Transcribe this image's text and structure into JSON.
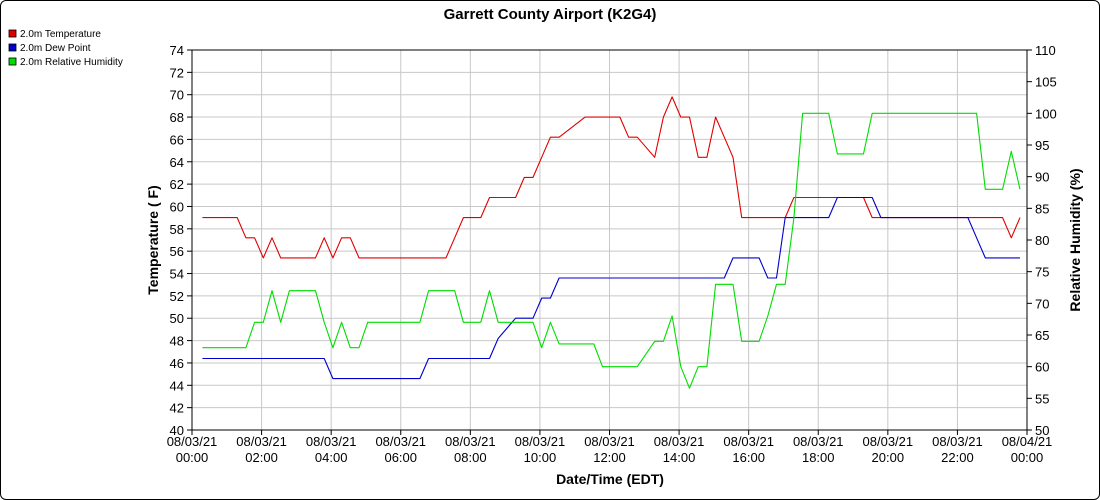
{
  "chart_data": {
    "type": "line",
    "title": "Garrett County Airport (K2G4)",
    "xlabel": "Date/Time (EDT)",
    "ylabel_left": "Temperature ( F)",
    "ylabel_right": "Relative Humidity (%)",
    "ylim_left": [
      40,
      74
    ],
    "ylim_right": [
      50,
      110
    ],
    "left_ticks": [
      "40",
      "42",
      "44",
      "46",
      "48",
      "50",
      "52",
      "54",
      "56",
      "58",
      "60",
      "62",
      "64",
      "66",
      "68",
      "70",
      "72",
      "74"
    ],
    "right_ticks": [
      "50",
      "55",
      "60",
      "65",
      "70",
      "75",
      "80",
      "85",
      "90",
      "95",
      "100",
      "105",
      "110"
    ],
    "x_ticks": [
      {
        "date": "08/03/21",
        "time": "00:00"
      },
      {
        "date": "08/03/21",
        "time": "02:00"
      },
      {
        "date": "08/03/21",
        "time": "04:00"
      },
      {
        "date": "08/03/21",
        "time": "06:00"
      },
      {
        "date": "08/03/21",
        "time": "08:00"
      },
      {
        "date": "08/03/21",
        "time": "10:00"
      },
      {
        "date": "08/03/21",
        "time": "12:00"
      },
      {
        "date": "08/03/21",
        "time": "14:00"
      },
      {
        "date": "08/03/21",
        "time": "16:00"
      },
      {
        "date": "08/03/21",
        "time": "18:00"
      },
      {
        "date": "08/03/21",
        "time": "20:00"
      },
      {
        "date": "08/03/21",
        "time": "22:00"
      },
      {
        "date": "08/04/21",
        "time": "00:00"
      }
    ],
    "x_hours_range": [
      0,
      24
    ],
    "grid": true,
    "legend_position": "top-left",
    "series": [
      {
        "name": "2.0m Temperature",
        "axis": "left",
        "color": "#e00000",
        "x": [
          0.3,
          0.55,
          0.8,
          1.3,
          1.55,
          1.8,
          2.05,
          2.3,
          2.55,
          2.8,
          3.3,
          3.55,
          3.8,
          4.05,
          4.3,
          4.55,
          4.8,
          5.05,
          5.3,
          5.55,
          6.3,
          6.55,
          6.8,
          7.3,
          7.55,
          7.8,
          8.3,
          8.55,
          8.8,
          9.3,
          9.55,
          9.8,
          10.05,
          10.3,
          10.55,
          11.3,
          11.55,
          11.8,
          12.3,
          12.55,
          12.8,
          13.3,
          13.55,
          13.8,
          14.05,
          14.3,
          14.55,
          14.8,
          15.05,
          15.3,
          15.55,
          15.8,
          16.3,
          16.55,
          16.8,
          17.05,
          17.3,
          17.55,
          18.3,
          18.55,
          18.8,
          19.3,
          19.55,
          19.8,
          20.3,
          20.55,
          20.8,
          21.3,
          21.55,
          22.3,
          22.55,
          22.8,
          23.3,
          23.55,
          23.8
        ],
        "y": [
          59,
          59,
          59,
          59,
          57.2,
          57.2,
          55.4,
          57.2,
          55.4,
          55.4,
          55.4,
          55.4,
          57.2,
          55.4,
          57.2,
          57.2,
          55.4,
          55.4,
          55.4,
          55.4,
          55.4,
          55.4,
          55.4,
          55.4,
          57.2,
          59,
          59,
          60.8,
          60.8,
          60.8,
          62.6,
          62.6,
          64.4,
          66.2,
          66.2,
          68,
          68,
          68,
          68,
          66.2,
          66.2,
          64.4,
          68,
          69.8,
          68,
          68,
          64.4,
          64.4,
          68,
          66.2,
          64.4,
          59,
          59,
          59,
          59,
          59,
          60.8,
          60.8,
          60.8,
          60.8,
          60.8,
          60.8,
          59,
          59,
          59,
          59,
          59,
          59,
          59,
          59,
          59,
          59,
          59,
          57.2,
          59
        ]
      },
      {
        "name": "2.0m Dew Point",
        "axis": "left",
        "color": "#0000cc",
        "x": [
          0.3,
          3.8,
          4.05,
          6.55,
          6.8,
          8.3,
          8.55,
          8.8,
          9.3,
          9.55,
          9.8,
          10.05,
          10.3,
          10.55,
          11.3,
          11.55,
          11.8,
          12.3,
          12.55,
          12.8,
          13.3,
          13.55,
          13.8,
          14.05,
          14.3,
          14.55,
          14.8,
          15.05,
          15.3,
          15.55,
          15.8,
          16.3,
          16.55,
          16.8,
          17.05,
          17.3,
          17.55,
          18.3,
          18.55,
          18.8,
          19.3,
          19.55,
          19.8,
          20.3,
          20.55,
          20.8,
          21.3,
          21.55,
          22.3,
          22.55,
          22.8,
          23.3,
          23.55,
          23.8
        ],
        "y": [
          46.4,
          46.4,
          44.6,
          44.6,
          46.4,
          46.4,
          46.4,
          48.2,
          50,
          50,
          50,
          51.8,
          51.8,
          53.6,
          53.6,
          53.6,
          53.6,
          53.6,
          53.6,
          53.6,
          53.6,
          53.6,
          53.6,
          53.6,
          53.6,
          53.6,
          53.6,
          53.6,
          53.6,
          55.4,
          55.4,
          55.4,
          53.6,
          53.6,
          59,
          59,
          59,
          59,
          60.8,
          60.8,
          60.8,
          60.8,
          59,
          59,
          59,
          59,
          59,
          59,
          59,
          57.2,
          55.4,
          55.4,
          55.4,
          55.4
        ]
      },
      {
        "name": "2.0m Relative Humidity",
        "axis": "right",
        "color": "#00dd00",
        "x": [
          0.3,
          1.3,
          1.55,
          1.8,
          2.05,
          2.3,
          2.55,
          2.8,
          3.3,
          3.55,
          3.8,
          4.05,
          4.3,
          4.55,
          4.8,
          5.05,
          5.3,
          6.3,
          6.55,
          6.8,
          7.3,
          7.55,
          7.8,
          8.3,
          8.55,
          8.8,
          9.3,
          9.55,
          9.8,
          10.05,
          10.3,
          10.55,
          11.3,
          11.55,
          11.8,
          12.3,
          12.55,
          12.8,
          13.3,
          13.55,
          13.8,
          14.05,
          14.3,
          14.55,
          14.8,
          15.05,
          15.3,
          15.55,
          15.8,
          16.3,
          16.55,
          16.8,
          17.05,
          17.3,
          17.55,
          18.3,
          18.55,
          18.8,
          19.3,
          19.55,
          19.8,
          20.3,
          20.55,
          20.8,
          21.3,
          21.55,
          22.3,
          22.55,
          22.8,
          23.3,
          23.55,
          23.8
        ],
        "y": [
          63,
          63,
          63,
          67,
          67,
          72,
          67,
          72,
          72,
          72,
          67,
          63,
          67,
          63,
          63,
          67,
          67,
          67,
          67,
          72,
          72,
          72,
          67,
          67,
          72,
          67,
          67,
          67,
          67,
          63,
          67,
          63.6,
          63.6,
          63.6,
          60,
          60,
          60,
          60,
          64,
          64,
          68,
          60,
          56.6,
          60,
          60,
          73,
          73,
          73,
          64,
          64,
          68,
          73,
          73,
          83.5,
          100,
          100,
          93.6,
          93.6,
          93.6,
          100,
          100,
          100,
          100,
          100,
          100,
          100,
          100,
          100,
          88,
          88,
          94,
          88
        ]
      }
    ]
  }
}
